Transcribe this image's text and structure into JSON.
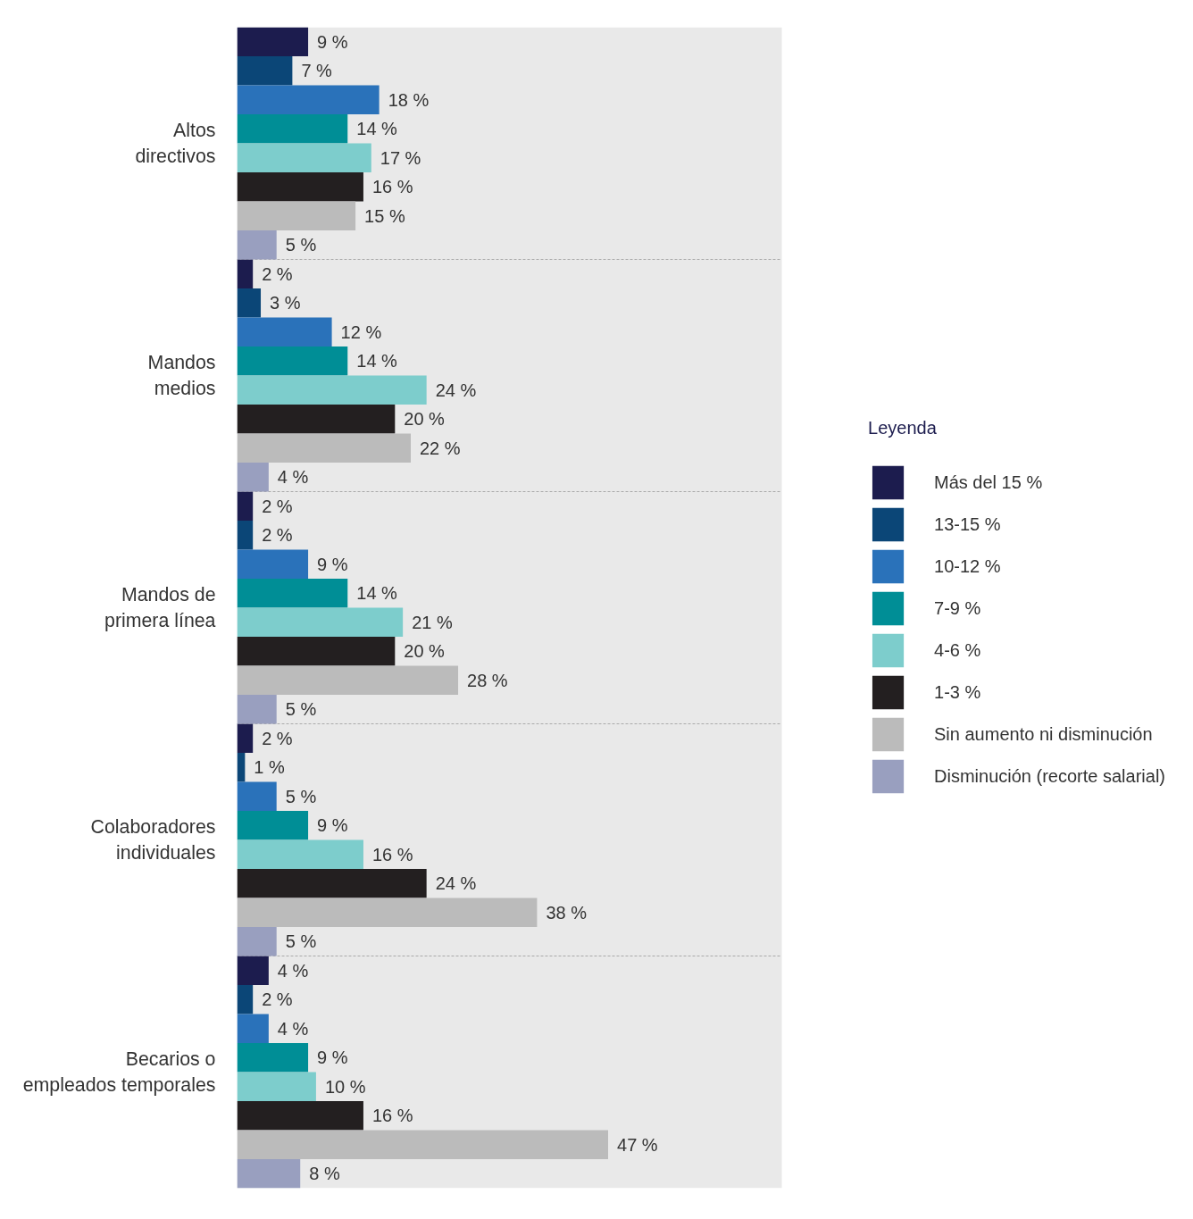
{
  "chart_data": {
    "type": "bar",
    "orientation": "horizontal",
    "legend_title": "Leyenda",
    "legend": "right",
    "grid": "y",
    "xlim": [
      0,
      69
    ],
    "tick_labels": "y",
    "categories": [
      "Altos\ndirectivos",
      "Mandos\nmedios",
      "Mandos de\nprimera línea",
      "Colaboradores\nindividuales",
      "Becarios o\nempleados temporales"
    ],
    "series": [
      {
        "name": "Más del 15 %",
        "color": "#1c1c4e",
        "values": [
          9,
          2,
          2,
          2,
          4
        ],
        "value_labels": [
          "9 %",
          "2 %",
          "2 %",
          "2 %",
          "4 %"
        ]
      },
      {
        "name": "13-15 %",
        "color": "#0b4677",
        "values": [
          7,
          3,
          2,
          1,
          2
        ],
        "value_labels": [
          "7 %",
          "3 %",
          "2 %",
          "1 %",
          "2 %"
        ]
      },
      {
        "name": "10-12 %",
        "color": "#2a72ba",
        "values": [
          18,
          12,
          9,
          5,
          4
        ],
        "value_labels": [
          "18 %",
          "12 %",
          "9 %",
          "5 %",
          "4 %"
        ]
      },
      {
        "name": "7-9 %",
        "color": "#008e96",
        "values": [
          14,
          14,
          14,
          9,
          9
        ],
        "value_labels": [
          "14 %",
          "14 %",
          "14 %",
          "9 %",
          "9 %"
        ]
      },
      {
        "name": "4-6 %",
        "color": "#7dcdcc",
        "values": [
          17,
          24,
          21,
          16,
          10
        ],
        "value_labels": [
          "17 %",
          "24 %",
          "21 %",
          "16 %",
          "10 %"
        ]
      },
      {
        "name": "1-3 %",
        "color": "#231f20",
        "values": [
          16,
          20,
          20,
          24,
          16
        ],
        "value_labels": [
          "16 %",
          "20 %",
          "20 %",
          "24 %",
          "16 %"
        ]
      },
      {
        "name": "Sin aumento ni disminución",
        "color": "#bbbbbb",
        "values": [
          15,
          22,
          28,
          38,
          47
        ],
        "value_labels": [
          "15 %",
          "22 %",
          "28 %",
          "38 %",
          "47 %"
        ]
      },
      {
        "name": "Disminución (recorte salarial)",
        "color": "#999fbf",
        "values": [
          5,
          4,
          5,
          5,
          8
        ],
        "value_labels": [
          "5 %",
          "4 %",
          "5 %",
          "5 %",
          "8 %"
        ]
      }
    ]
  }
}
